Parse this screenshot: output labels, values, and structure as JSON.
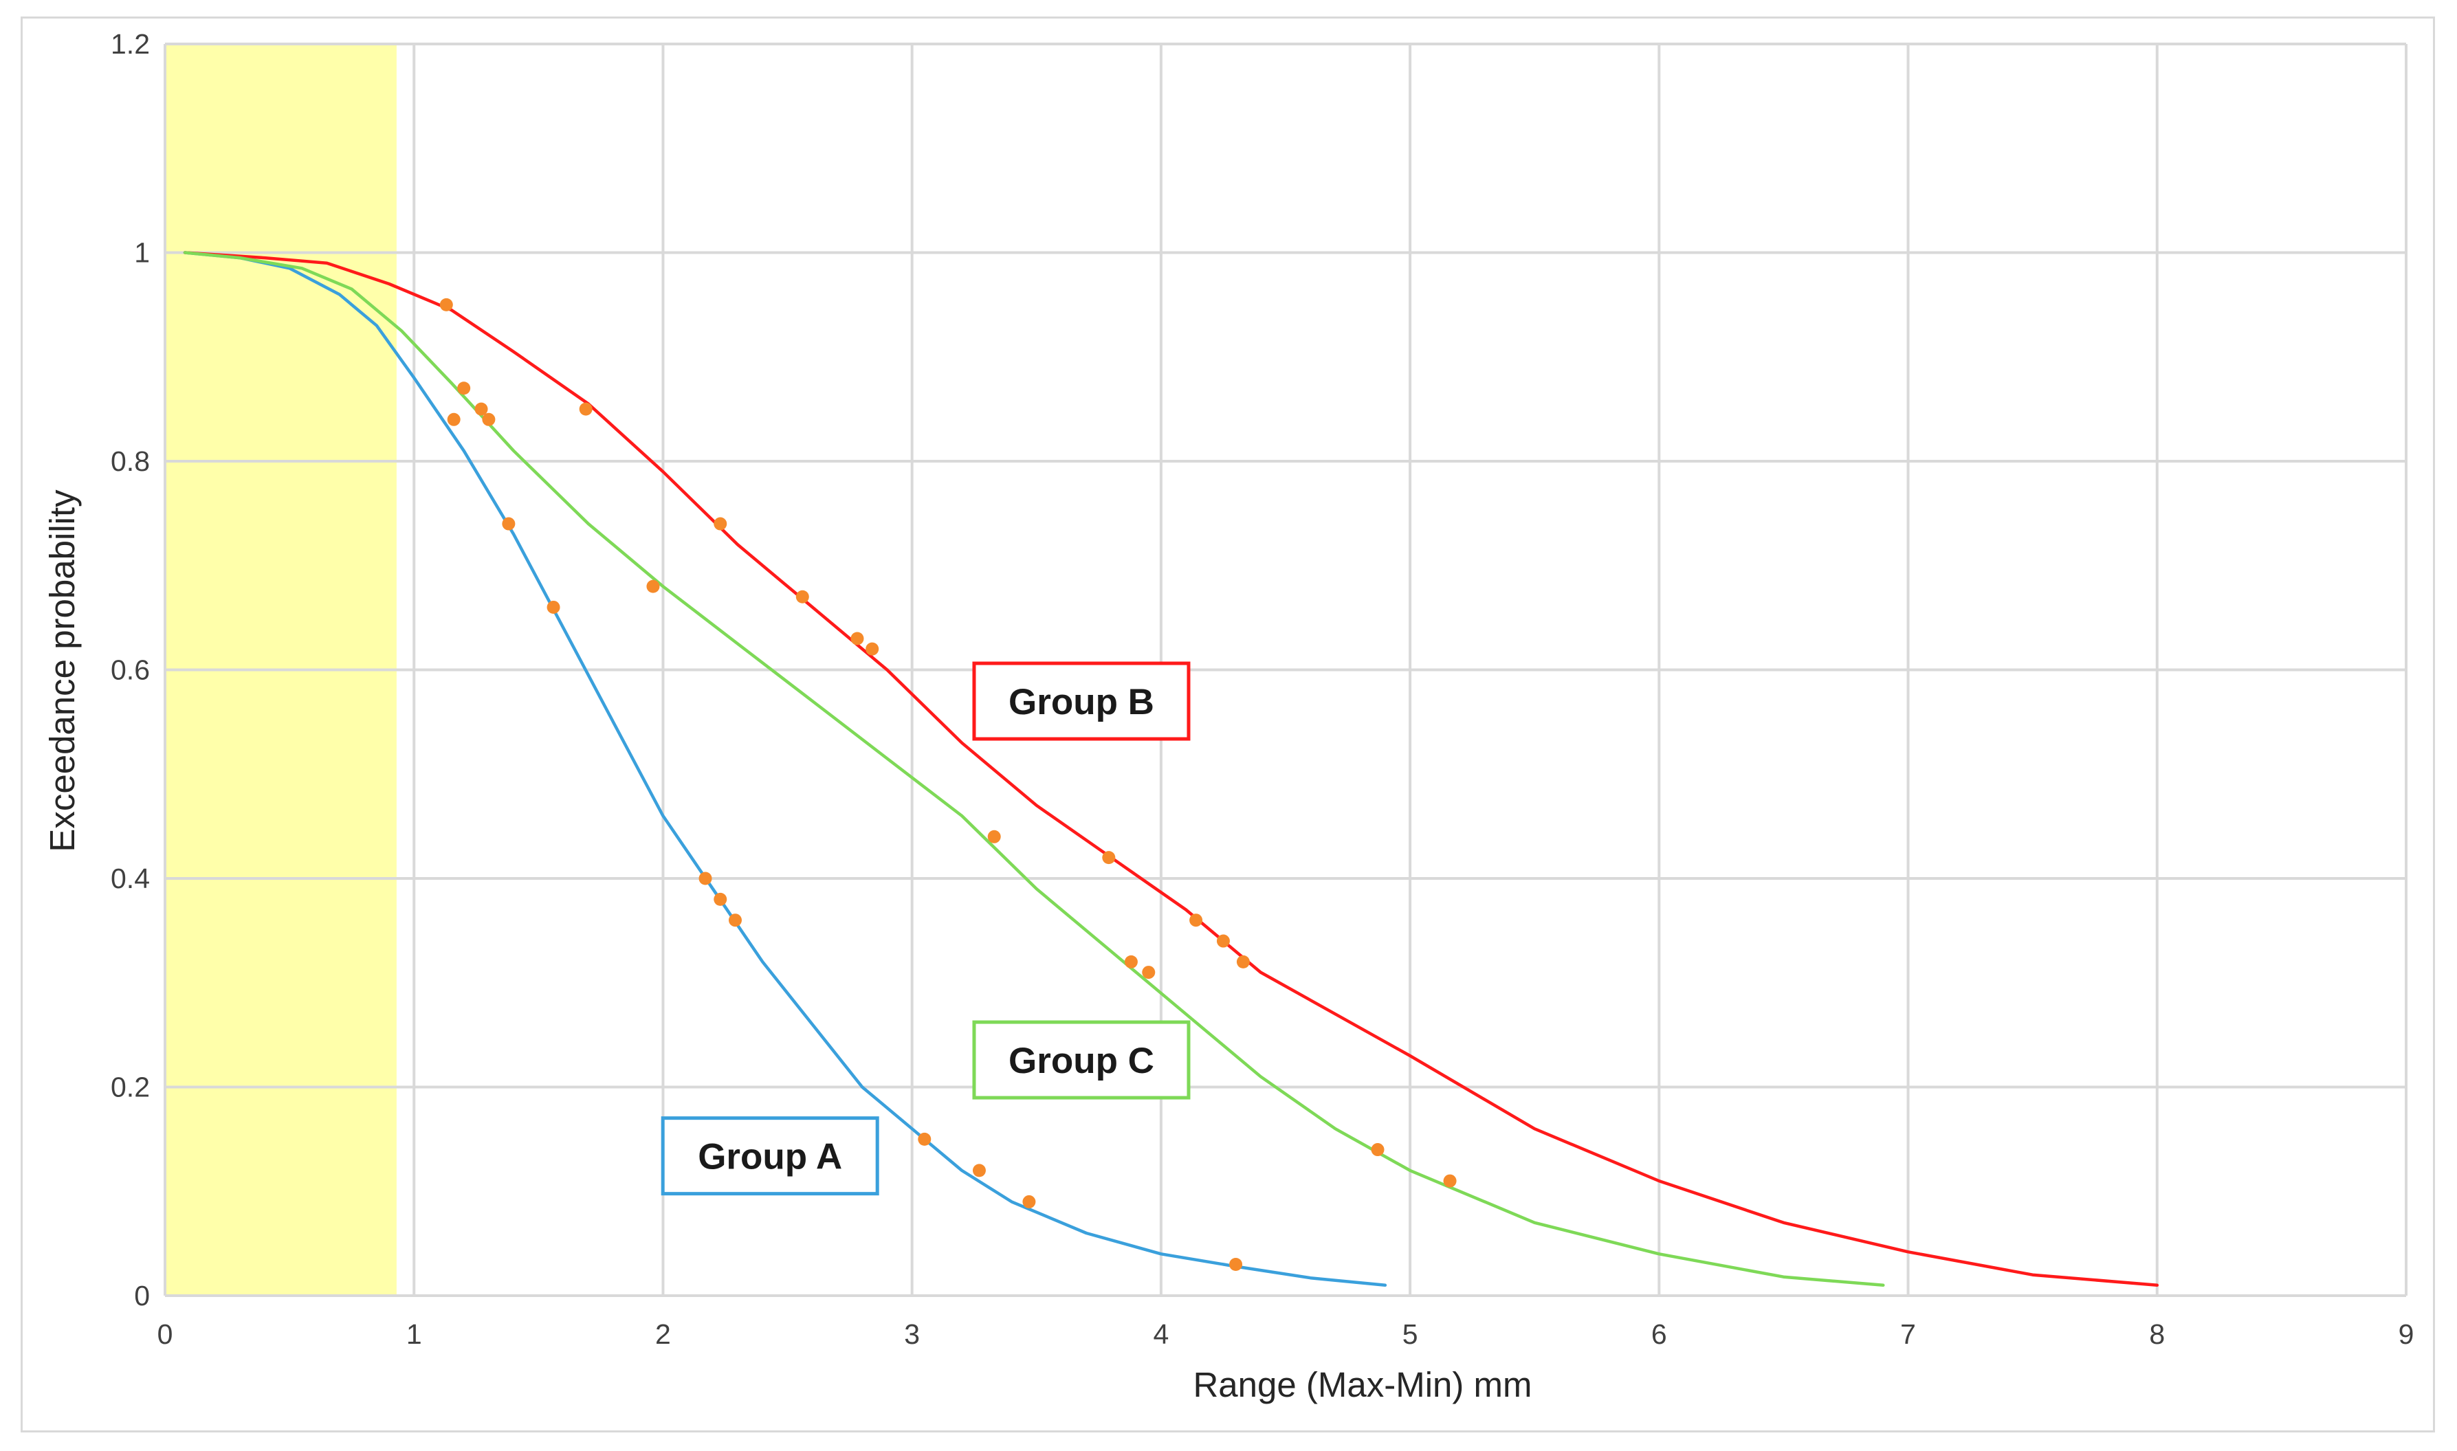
{
  "chart_data": {
    "type": "line",
    "title": "",
    "xlabel": "Range (Max-Min) mm",
    "ylabel": "Exceedance probability",
    "xlim": [
      0,
      9
    ],
    "ylim": [
      0,
      1.2
    ],
    "x_ticks": [
      "0",
      "1",
      "2",
      "3",
      "4",
      "5",
      "6",
      "7",
      "8",
      "9"
    ],
    "y_ticks": [
      "0",
      "0.2",
      "0.4",
      "0.6",
      "0.8",
      "1",
      "1.2"
    ],
    "grid": true,
    "legend": "none",
    "highlight_band": {
      "x_range": [
        0,
        0.93
      ],
      "color": "#ffffaa"
    },
    "colors": {
      "group_a": "#3aa0dc",
      "group_b": "#ff1a1a",
      "group_c": "#7ed957",
      "points": "#f58a2a"
    },
    "series": [
      {
        "name": "Group A",
        "kind": "fitted-curve",
        "color": "#3aa0dc",
        "points": [
          [
            0.08,
            1.0
          ],
          [
            0.3,
            0.995
          ],
          [
            0.5,
            0.985
          ],
          [
            0.7,
            0.96
          ],
          [
            0.85,
            0.93
          ],
          [
            1.0,
            0.88
          ],
          [
            1.2,
            0.81
          ],
          [
            1.4,
            0.73
          ],
          [
            1.6,
            0.64
          ],
          [
            1.8,
            0.55
          ],
          [
            2.0,
            0.46
          ],
          [
            2.2,
            0.39
          ],
          [
            2.4,
            0.32
          ],
          [
            2.6,
            0.26
          ],
          [
            2.8,
            0.2
          ],
          [
            3.0,
            0.16
          ],
          [
            3.2,
            0.12
          ],
          [
            3.4,
            0.09
          ],
          [
            3.7,
            0.06
          ],
          [
            4.0,
            0.04
          ],
          [
            4.3,
            0.028
          ],
          [
            4.6,
            0.017
          ],
          [
            4.9,
            0.01
          ]
        ]
      },
      {
        "name": "Group B",
        "kind": "fitted-curve",
        "color": "#ff1a1a",
        "points": [
          [
            0.08,
            1.0
          ],
          [
            0.4,
            0.995
          ],
          [
            0.65,
            0.99
          ],
          [
            0.9,
            0.97
          ],
          [
            1.15,
            0.945
          ],
          [
            1.4,
            0.905
          ],
          [
            1.7,
            0.855
          ],
          [
            2.0,
            0.79
          ],
          [
            2.3,
            0.72
          ],
          [
            2.6,
            0.66
          ],
          [
            2.9,
            0.6
          ],
          [
            3.2,
            0.53
          ],
          [
            3.5,
            0.47
          ],
          [
            3.8,
            0.42
          ],
          [
            4.1,
            0.37
          ],
          [
            4.4,
            0.31
          ],
          [
            4.7,
            0.27
          ],
          [
            5.0,
            0.23
          ],
          [
            5.5,
            0.16
          ],
          [
            6.0,
            0.11
          ],
          [
            6.5,
            0.07
          ],
          [
            7.0,
            0.042
          ],
          [
            7.5,
            0.02
          ],
          [
            8.0,
            0.01
          ]
        ]
      },
      {
        "name": "Group C",
        "kind": "fitted-curve",
        "color": "#7ed957",
        "points": [
          [
            0.08,
            1.0
          ],
          [
            0.3,
            0.995
          ],
          [
            0.55,
            0.985
          ],
          [
            0.75,
            0.965
          ],
          [
            0.95,
            0.925
          ],
          [
            1.15,
            0.875
          ],
          [
            1.4,
            0.81
          ],
          [
            1.7,
            0.74
          ],
          [
            2.0,
            0.68
          ],
          [
            2.3,
            0.625
          ],
          [
            2.6,
            0.57
          ],
          [
            2.9,
            0.515
          ],
          [
            3.2,
            0.46
          ],
          [
            3.5,
            0.39
          ],
          [
            3.8,
            0.33
          ],
          [
            4.1,
            0.27
          ],
          [
            4.4,
            0.21
          ],
          [
            4.7,
            0.16
          ],
          [
            5.0,
            0.12
          ],
          [
            5.5,
            0.07
          ],
          [
            6.0,
            0.04
          ],
          [
            6.5,
            0.018
          ],
          [
            6.9,
            0.01
          ]
        ]
      },
      {
        "name": "",
        "kind": "observed-points",
        "color": "#f58a2a",
        "points": [
          [
            1.13,
            0.95
          ],
          [
            1.2,
            0.87
          ],
          [
            1.27,
            0.85
          ],
          [
            1.3,
            0.84
          ],
          [
            1.16,
            0.84
          ],
          [
            1.38,
            0.74
          ],
          [
            1.56,
            0.66
          ],
          [
            1.69,
            0.85
          ],
          [
            1.96,
            0.68
          ],
          [
            2.17,
            0.4
          ],
          [
            2.23,
            0.38
          ],
          [
            2.29,
            0.36
          ],
          [
            2.23,
            0.74
          ],
          [
            2.56,
            0.67
          ],
          [
            2.78,
            0.63
          ],
          [
            2.84,
            0.62
          ],
          [
            3.05,
            0.15
          ],
          [
            3.27,
            0.12
          ],
          [
            3.33,
            0.44
          ],
          [
            3.47,
            0.09
          ],
          [
            3.79,
            0.42
          ],
          [
            3.88,
            0.32
          ],
          [
            3.95,
            0.31
          ],
          [
            4.14,
            0.36
          ],
          [
            4.25,
            0.34
          ],
          [
            4.3,
            0.03
          ],
          [
            4.33,
            0.32
          ],
          [
            4.87,
            0.14
          ],
          [
            5.16,
            0.11
          ]
        ]
      }
    ],
    "annotations": [
      {
        "text": "Group A",
        "color": "#3aa0dc",
        "x": 2.43,
        "y": 0.134
      },
      {
        "text": "Group B",
        "color": "#ff1a1a",
        "x": 3.68,
        "y": 0.57
      },
      {
        "text": "Group C",
        "color": "#7ed957",
        "x": 3.68,
        "y": 0.226
      }
    ]
  }
}
